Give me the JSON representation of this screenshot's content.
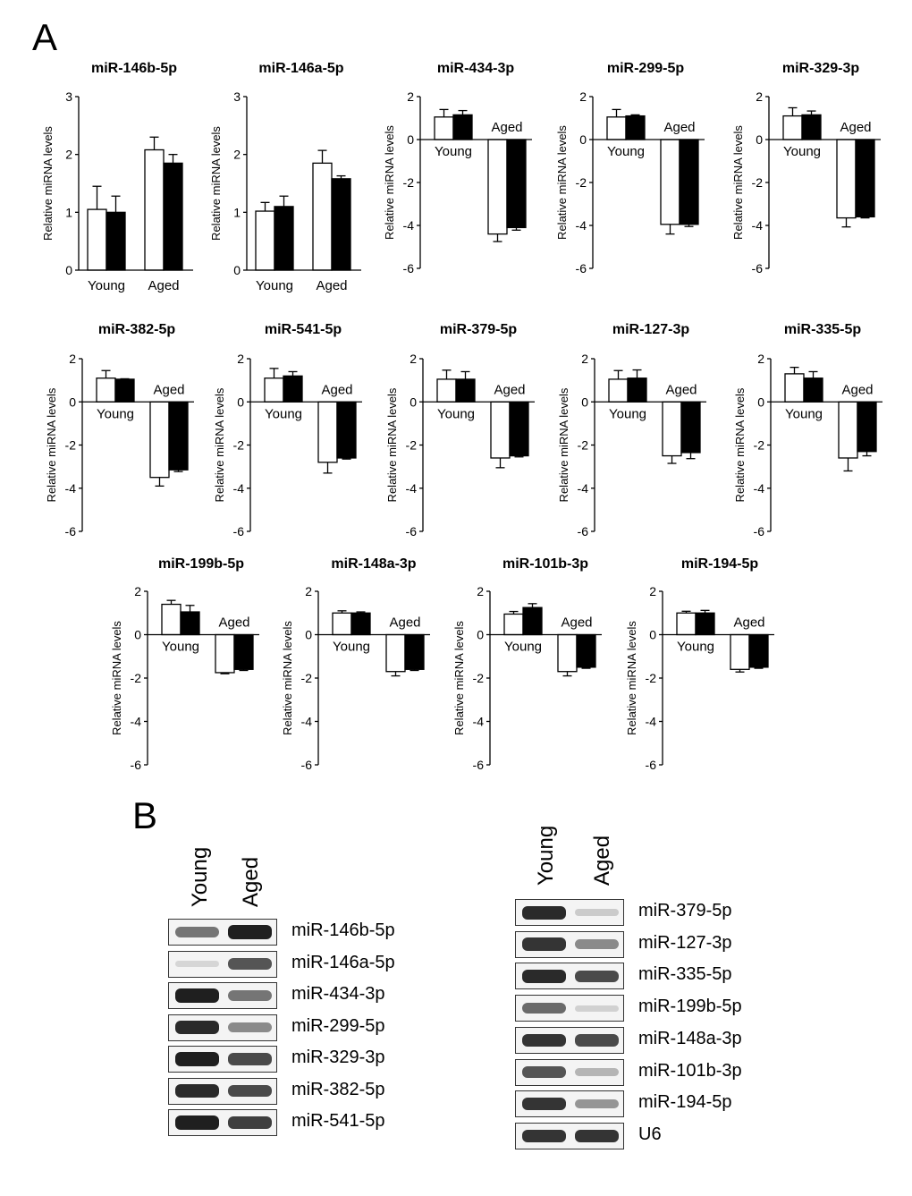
{
  "panels": {
    "A": "A",
    "B": "B"
  },
  "groups": {
    "young": "Young",
    "aged": "Aged"
  },
  "chart_data": [
    {
      "type": "bar",
      "title": "miR-146b-5p",
      "ylabel": "Relative miRNA levels",
      "ylim": [
        0,
        3
      ],
      "yticks": [
        0,
        1,
        2,
        3
      ],
      "categories": [
        "Young",
        "Aged"
      ],
      "series": [
        {
          "color": "#ffffff",
          "values": [
            1.05,
            2.08
          ],
          "errors": [
            0.4,
            0.22
          ]
        },
        {
          "color": "#000000",
          "values": [
            1.0,
            1.85
          ],
          "errors": [
            0.28,
            0.15
          ]
        }
      ]
    },
    {
      "type": "bar",
      "title": "miR-146a-5p",
      "ylabel": "Relative miRNA levels",
      "ylim": [
        0,
        3
      ],
      "yticks": [
        0,
        1,
        2,
        3
      ],
      "categories": [
        "Young",
        "Aged"
      ],
      "series": [
        {
          "color": "#ffffff",
          "values": [
            1.02,
            1.85
          ],
          "errors": [
            0.15,
            0.22
          ]
        },
        {
          "color": "#000000",
          "values": [
            1.1,
            1.58
          ],
          "errors": [
            0.18,
            0.05
          ]
        }
      ]
    },
    {
      "type": "bar",
      "title": "miR-434-3p",
      "ylabel": "Relative miRNA levels",
      "ylim": [
        -6,
        2
      ],
      "yticks": [
        -6,
        -4,
        -2,
        0,
        2
      ],
      "categories": [
        "Young",
        "Aged"
      ],
      "series": [
        {
          "color": "#ffffff",
          "values": [
            1.05,
            -4.4
          ],
          "errors": [
            0.35,
            0.35
          ]
        },
        {
          "color": "#000000",
          "values": [
            1.15,
            -4.1
          ],
          "errors": [
            0.2,
            0.12
          ]
        }
      ]
    },
    {
      "type": "bar",
      "title": "miR-299-5p",
      "ylabel": "Relative miRNA levels",
      "ylim": [
        -6,
        2
      ],
      "yticks": [
        -6,
        -4,
        -2,
        0,
        2
      ],
      "categories": [
        "Young",
        "Aged"
      ],
      "series": [
        {
          "color": "#ffffff",
          "values": [
            1.05,
            -3.95
          ],
          "errors": [
            0.35,
            0.45
          ]
        },
        {
          "color": "#000000",
          "values": [
            1.1,
            -3.95
          ],
          "errors": [
            0.05,
            0.1
          ]
        }
      ]
    },
    {
      "type": "bar",
      "title": "miR-329-3p",
      "ylabel": "Relative miRNA levels",
      "ylim": [
        -6,
        2
      ],
      "yticks": [
        -6,
        -4,
        -2,
        0,
        2
      ],
      "categories": [
        "Young",
        "Aged"
      ],
      "series": [
        {
          "color": "#ffffff",
          "values": [
            1.1,
            -3.65
          ],
          "errors": [
            0.38,
            0.42
          ]
        },
        {
          "color": "#000000",
          "values": [
            1.15,
            -3.6
          ],
          "errors": [
            0.18,
            0.05
          ]
        }
      ]
    },
    {
      "type": "bar",
      "title": "miR-382-5p",
      "ylabel": "Relative miRNA levels",
      "ylim": [
        -6,
        2
      ],
      "yticks": [
        -6,
        -4,
        -2,
        0,
        2
      ],
      "categories": [
        "Young",
        "Aged"
      ],
      "series": [
        {
          "color": "#ffffff",
          "values": [
            1.1,
            -3.5
          ],
          "errors": [
            0.35,
            0.4
          ]
        },
        {
          "color": "#000000",
          "values": [
            1.05,
            -3.15
          ],
          "errors": [
            0.02,
            0.08
          ]
        }
      ]
    },
    {
      "type": "bar",
      "title": "miR-541-5p",
      "ylabel": "Relative miRNA levels",
      "ylim": [
        -6,
        2
      ],
      "yticks": [
        -6,
        -4,
        -2,
        0,
        2
      ],
      "categories": [
        "Young",
        "Aged"
      ],
      "series": [
        {
          "color": "#ffffff",
          "values": [
            1.1,
            -2.8
          ],
          "errors": [
            0.45,
            0.5
          ]
        },
        {
          "color": "#000000",
          "values": [
            1.2,
            -2.6
          ],
          "errors": [
            0.2,
            0.05
          ]
        }
      ]
    },
    {
      "type": "bar",
      "title": "miR-379-5p",
      "ylabel": "Relative miRNA levels",
      "ylim": [
        -6,
        2
      ],
      "yticks": [
        -6,
        -4,
        -2,
        0,
        2
      ],
      "categories": [
        "Young",
        "Aged"
      ],
      "series": [
        {
          "color": "#ffffff",
          "values": [
            1.05,
            -2.6
          ],
          "errors": [
            0.42,
            0.45
          ]
        },
        {
          "color": "#000000",
          "values": [
            1.05,
            -2.5
          ],
          "errors": [
            0.35,
            0.05
          ]
        }
      ]
    },
    {
      "type": "bar",
      "title": "miR-127-3p",
      "ylabel": "Relative miRNA levels",
      "ylim": [
        -6,
        2
      ],
      "yticks": [
        -6,
        -4,
        -2,
        0,
        2
      ],
      "categories": [
        "Young",
        "Aged"
      ],
      "series": [
        {
          "color": "#ffffff",
          "values": [
            1.05,
            -2.5
          ],
          "errors": [
            0.4,
            0.35
          ]
        },
        {
          "color": "#000000",
          "values": [
            1.1,
            -2.35
          ],
          "errors": [
            0.38,
            0.28
          ]
        }
      ]
    },
    {
      "type": "bar",
      "title": "miR-335-5p",
      "ylabel": "Relative miRNA levels",
      "ylim": [
        -6,
        2
      ],
      "yticks": [
        -6,
        -4,
        -2,
        0,
        2
      ],
      "categories": [
        "Young",
        "Aged"
      ],
      "series": [
        {
          "color": "#ffffff",
          "values": [
            1.3,
            -2.6
          ],
          "errors": [
            0.3,
            0.6
          ]
        },
        {
          "color": "#000000",
          "values": [
            1.1,
            -2.3
          ],
          "errors": [
            0.3,
            0.2
          ]
        }
      ]
    },
    {
      "type": "bar",
      "title": "miR-199b-5p",
      "ylabel": "Relative miRNA levels",
      "ylim": [
        -6,
        2
      ],
      "yticks": [
        -6,
        -4,
        -2,
        0,
        2
      ],
      "categories": [
        "Young",
        "Aged"
      ],
      "series": [
        {
          "color": "#ffffff",
          "values": [
            1.4,
            -1.75
          ],
          "errors": [
            0.18,
            0.05
          ]
        },
        {
          "color": "#000000",
          "values": [
            1.05,
            -1.6
          ],
          "errors": [
            0.3,
            0.05
          ]
        }
      ]
    },
    {
      "type": "bar",
      "title": "miR-148a-3p",
      "ylabel": "Relative miRNA levels",
      "ylim": [
        -6,
        2
      ],
      "yticks": [
        -6,
        -4,
        -2,
        0,
        2
      ],
      "categories": [
        "Young",
        "Aged"
      ],
      "series": [
        {
          "color": "#ffffff",
          "values": [
            1.0,
            -1.7
          ],
          "errors": [
            0.1,
            0.2
          ]
        },
        {
          "color": "#000000",
          "values": [
            1.0,
            -1.6
          ],
          "errors": [
            0.05,
            0.05
          ]
        }
      ]
    },
    {
      "type": "bar",
      "title": "miR-101b-3p",
      "ylabel": "Relative miRNA levels",
      "ylim": [
        -6,
        2
      ],
      "yticks": [
        -6,
        -4,
        -2,
        0,
        2
      ],
      "categories": [
        "Young",
        "Aged"
      ],
      "series": [
        {
          "color": "#ffffff",
          "values": [
            0.95,
            -1.7
          ],
          "errors": [
            0.12,
            0.2
          ]
        },
        {
          "color": "#000000",
          "values": [
            1.25,
            -1.5
          ],
          "errors": [
            0.18,
            0.05
          ]
        }
      ]
    },
    {
      "type": "bar",
      "title": "miR-194-5p",
      "ylabel": "Relative miRNA levels",
      "ylim": [
        -6,
        2
      ],
      "yticks": [
        -6,
        -4,
        -2,
        0,
        2
      ],
      "categories": [
        "Young",
        "Aged"
      ],
      "series": [
        {
          "color": "#ffffff",
          "values": [
            1.0,
            -1.6
          ],
          "errors": [
            0.08,
            0.12
          ]
        },
        {
          "color": "#000000",
          "values": [
            1.0,
            -1.5
          ],
          "errors": [
            0.12,
            0.05
          ]
        }
      ]
    }
  ],
  "blots": [
    {
      "name": "left",
      "rows": [
        {
          "label": "miR-146b-5p",
          "young": 0.55,
          "aged": 0.95
        },
        {
          "label": "miR-146a-5p",
          "young": 0.1,
          "aged": 0.7
        },
        {
          "label": "miR-434-3p",
          "young": 0.95,
          "aged": 0.55
        },
        {
          "label": "miR-299-5p",
          "young": 0.9,
          "aged": 0.45
        },
        {
          "label": "miR-329-3p",
          "young": 0.95,
          "aged": 0.75
        },
        {
          "label": "miR-382-5p",
          "young": 0.9,
          "aged": 0.75
        },
        {
          "label": "miR-541-5p",
          "young": 0.95,
          "aged": 0.8
        }
      ]
    },
    {
      "name": "right",
      "rows": [
        {
          "label": "miR-379-5p",
          "young": 0.9,
          "aged": 0.15
        },
        {
          "label": "miR-127-3p",
          "young": 0.85,
          "aged": 0.45
        },
        {
          "label": "miR-335-5p",
          "young": 0.9,
          "aged": 0.75
        },
        {
          "label": "miR-199b-5p",
          "young": 0.6,
          "aged": 0.12
        },
        {
          "label": "miR-148a-3p",
          "young": 0.85,
          "aged": 0.75
        },
        {
          "label": "miR-101b-3p",
          "young": 0.7,
          "aged": 0.25
        },
        {
          "label": "miR-194-5p",
          "young": 0.85,
          "aged": 0.4
        },
        {
          "label": "U6",
          "young": 0.85,
          "aged": 0.85
        }
      ]
    }
  ]
}
